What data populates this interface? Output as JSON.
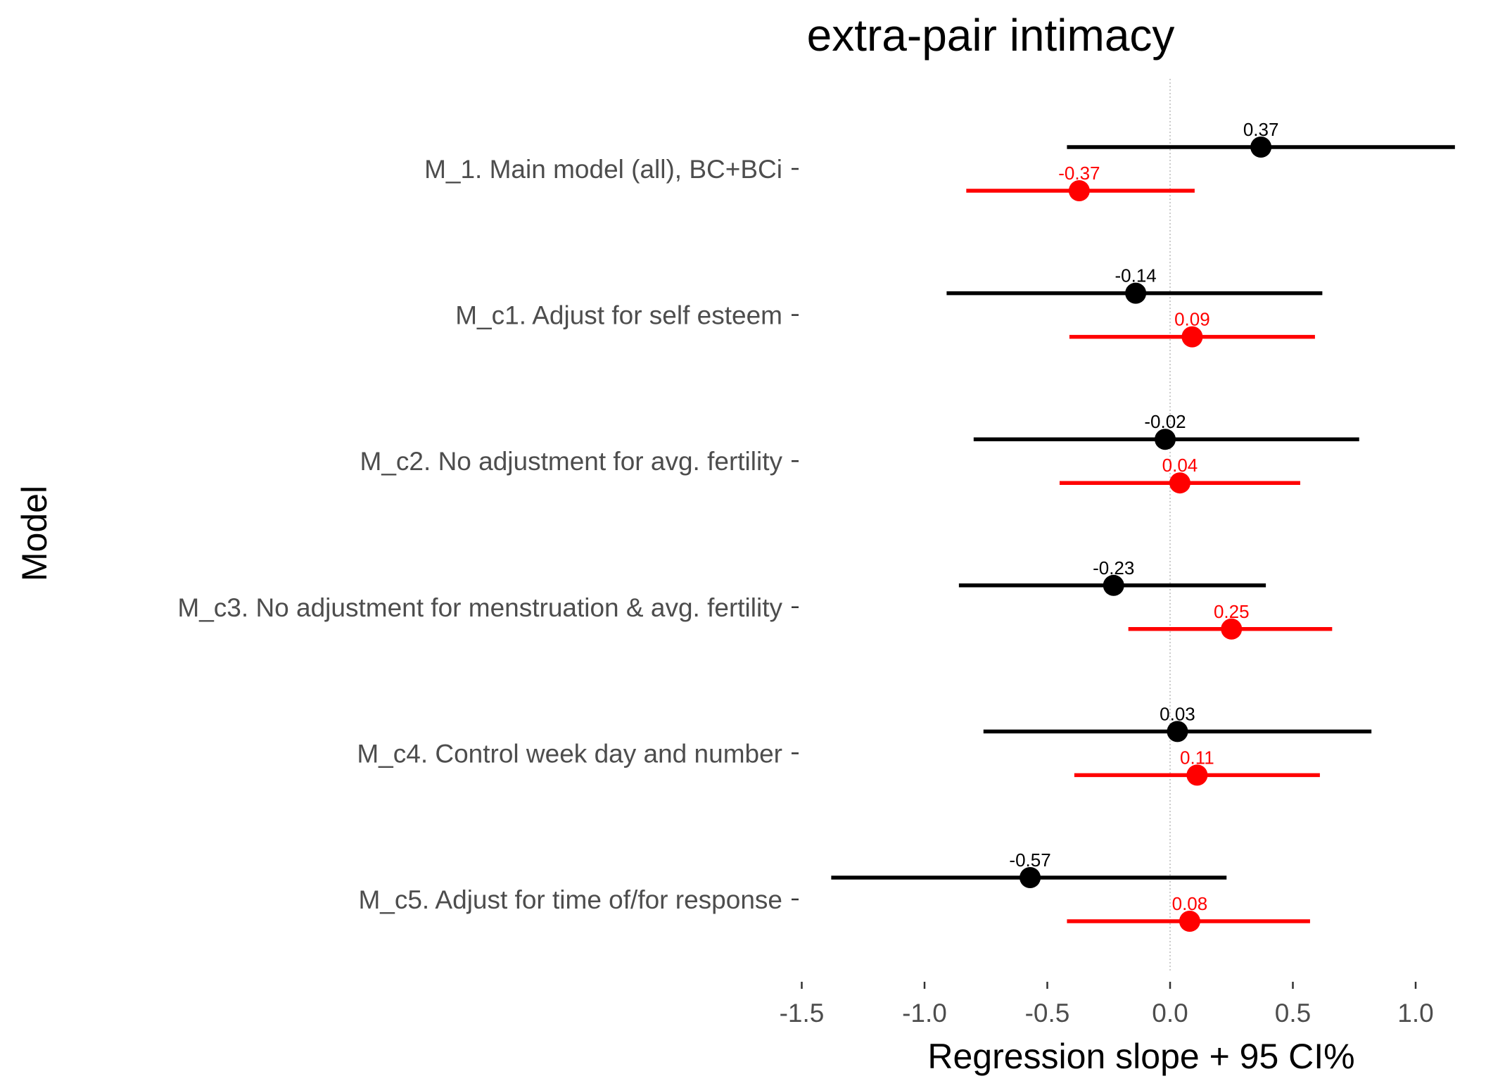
{
  "chart_data": {
    "type": "scatter",
    "subtype": "forest-plot",
    "title": "extra-pair intimacy",
    "xlabel": "Regression slope + 95 CI%",
    "ylabel": "Model",
    "xlim": [
      -1.5,
      1.2
    ],
    "x_ticks": [
      -1.5,
      -1.0,
      -0.5,
      0.0,
      0.5,
      1.0
    ],
    "x_tick_labels": [
      "-1.5",
      "-1.0",
      "-0.5",
      "0.0",
      "0.5",
      "1.0"
    ],
    "reference_line": 0,
    "grid": false,
    "legend": "none",
    "categories": [
      "M_1. Main model (all), BC+BCi",
      "M_c1. Adjust for self esteem",
      "M_c2. No adjustment for avg. fertility",
      "M_c3. No adjustment for menstruation & avg. fertility",
      "M_c4. Control week day and number",
      "M_c5. Adjust for time of/for response"
    ],
    "series": [
      {
        "color": "#000000",
        "estimates": [
          0.37,
          -0.14,
          -0.02,
          -0.23,
          0.03,
          -0.57
        ],
        "labels": [
          "0.37",
          "-0.14",
          "-0.02",
          "-0.23",
          "0.03",
          "-0.57"
        ],
        "ci_low": [
          -0.42,
          -0.91,
          -0.8,
          -0.86,
          -0.76,
          -1.38
        ],
        "ci_high": [
          1.16,
          0.62,
          0.77,
          0.39,
          0.82,
          0.23
        ]
      },
      {
        "color": "#ff0000",
        "estimates": [
          -0.37,
          0.09,
          0.04,
          0.25,
          0.11,
          0.08
        ],
        "labels": [
          "-0.37",
          "0.09",
          "0.04",
          "0.25",
          "0.11",
          "0.08"
        ],
        "ci_low": [
          -0.83,
          -0.41,
          -0.45,
          -0.17,
          -0.39,
          -0.42
        ],
        "ci_high": [
          0.1,
          0.59,
          0.53,
          0.66,
          0.61,
          0.57
        ]
      }
    ]
  }
}
